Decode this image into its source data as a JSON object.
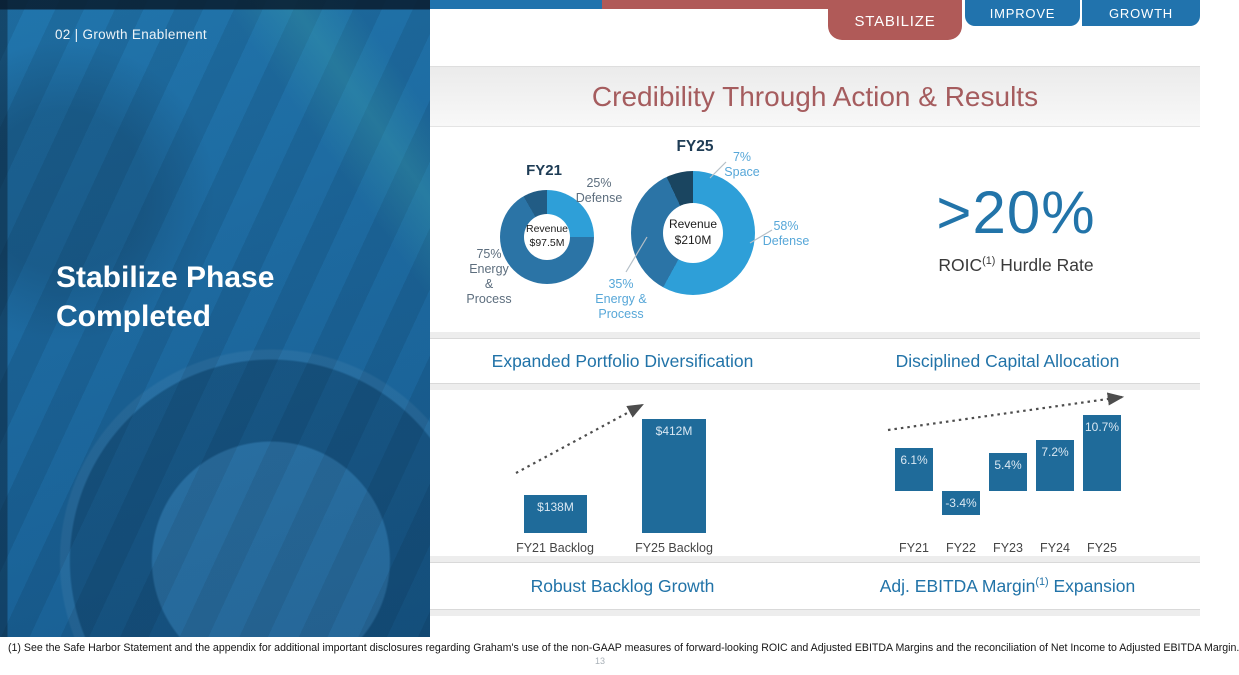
{
  "tabs": [
    {
      "label": "STABILIZE",
      "active": true
    },
    {
      "label": "IMPROVE",
      "active": false
    },
    {
      "label": "GROWTH",
      "active": false
    }
  ],
  "sidebar": {
    "kicker": "02 | Growth Enablement",
    "title": "Stabilize Phase Completed"
  },
  "header": {
    "title": "Credibility Through Action & Results"
  },
  "roic": {
    "value": ">20%",
    "label_prefix": "ROIC",
    "footnote_marker": "(1)",
    "label_suffix": " Hurdle Rate"
  },
  "sections": {
    "portfolio": "Expanded Portfolio Diversification",
    "capital": "Disciplined Capital Allocation",
    "backlog": "Robust Backlog Growth",
    "ebitda_prefix": "Adj. EBITDA Margin",
    "ebitda_marker": "(1)",
    "ebitda_suffix": " Expansion"
  },
  "footer": {
    "footnote": "(1) See the Safe Harbor Statement and the appendix for additional important disclosures regarding Graham's use of the non-GAAP measures of forward-looking ROIC and Adjusted EBITDA Margins and the reconciliation of Net Income to Adjusted EBITDA Margin.",
    "page_number": "13"
  },
  "colors": {
    "brand_blue": "#2173ad",
    "brand_red": "#b05a58",
    "section_heading_blue": "#2173a8",
    "bar_blue": "#1f6b9a"
  },
  "chart_data": [
    {
      "type": "pie",
      "title": "FY21",
      "center": [
        "Revenue",
        "$97.5M"
      ],
      "slices": [
        {
          "label": "Defense",
          "pct": 25,
          "color": "#2e9fd8"
        },
        {
          "label": "Energy & Process",
          "pct": 75,
          "color": "#2b74a6"
        }
      ],
      "callouts": [
        {
          "lines": [
            "25%",
            "Defense"
          ]
        },
        {
          "lines": [
            "75%",
            "Energy",
            "&",
            "Process"
          ]
        }
      ]
    },
    {
      "type": "pie",
      "title": "FY25",
      "center": [
        "Revenue",
        "$210M"
      ],
      "slices": [
        {
          "label": "Defense",
          "pct": 58,
          "color": "#2e9fd8"
        },
        {
          "label": "Energy & Process",
          "pct": 35,
          "color": "#2b74a6"
        },
        {
          "label": "Space",
          "pct": 7,
          "color": "#1a4560"
        }
      ],
      "callouts": [
        {
          "lines": [
            "7%",
            "Space"
          ]
        },
        {
          "lines": [
            "58%",
            "Defense"
          ]
        },
        {
          "lines": [
            "35%",
            "Energy &",
            "Process"
          ]
        }
      ]
    },
    {
      "type": "bar",
      "title": "Robust Backlog Growth",
      "categories": [
        "FY21 Backlog",
        "FY25 Backlog"
      ],
      "values": [
        138,
        412
      ],
      "labels": [
        "$138M",
        "$412M"
      ],
      "unit": "$M",
      "color": "#1f6b9a",
      "trend": "up"
    },
    {
      "type": "bar",
      "title": "Adj. EBITDA Margin Expansion",
      "categories": [
        "FY21",
        "FY22",
        "FY23",
        "FY24",
        "FY25"
      ],
      "values": [
        6.1,
        -3.4,
        5.4,
        7.2,
        10.7
      ],
      "labels": [
        "6.1%",
        "-3.4%",
        "5.4%",
        "7.2%",
        "10.7%"
      ],
      "unit": "%",
      "color": "#1f6b9a",
      "trend": "up"
    }
  ]
}
